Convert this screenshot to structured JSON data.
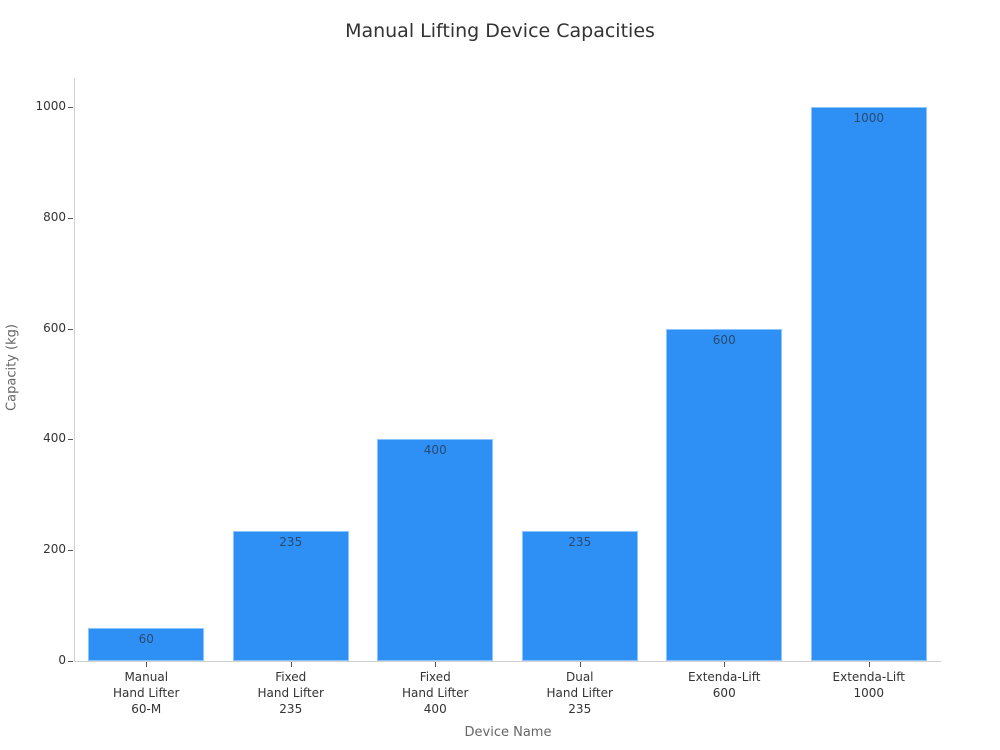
{
  "chart_data": {
    "type": "bar",
    "title": "Manual Lifting Device Capacities",
    "xlabel": "Device Name",
    "ylabel": "Capacity (kg)",
    "categories": [
      "Manual\nHand Lifter\n60-M",
      "Fixed\nHand Lifter\n235",
      "Fixed\nHand Lifter\n400",
      "Dual\nHand Lifter\n235",
      "Extenda-Lift\n600",
      "Extenda-Lift\n1000"
    ],
    "values": [
      60,
      235,
      400,
      235,
      600,
      1000
    ],
    "data_labels": [
      "60",
      "235",
      "400",
      "235",
      "600",
      "1000"
    ],
    "ylim": [
      0,
      1050
    ],
    "yticks": [
      0,
      200,
      400,
      600,
      800,
      1000
    ],
    "grid": false,
    "legend": null,
    "bar_color": "#2e90f5"
  }
}
